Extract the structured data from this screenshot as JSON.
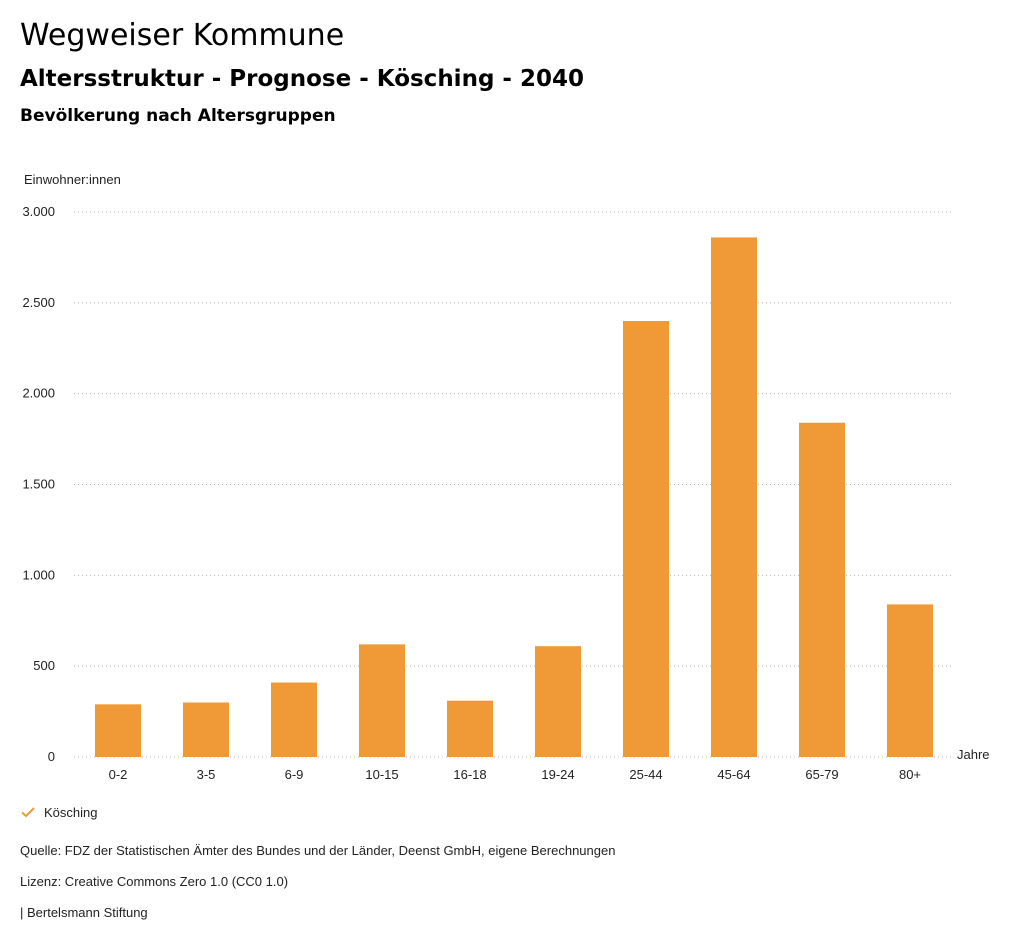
{
  "header": {
    "title": "Wegweiser Kommune",
    "subtitle": "Altersstruktur - Prognose - Kösching - 2040",
    "chart_heading": "Bevölkerung nach Altersgruppen"
  },
  "colors": {
    "bar": "#ef9a37",
    "grid": "#b5b5b5",
    "text": "#222222"
  },
  "chart_data": {
    "type": "bar",
    "title": "Bevölkerung nach Altersgruppen",
    "xlabel": "Jahre",
    "ylabel": "Einwohner:innen",
    "ylim": [
      0,
      3000
    ],
    "yticks": [
      0,
      500,
      1000,
      1500,
      2000,
      2500,
      3000
    ],
    "ytick_labels": [
      "0",
      "500",
      "1.000",
      "1.500",
      "2.000",
      "2.500",
      "3.000"
    ],
    "grid": true,
    "categories": [
      "0-2",
      "3-5",
      "6-9",
      "10-15",
      "16-18",
      "19-24",
      "25-44",
      "45-64",
      "65-79",
      "80+"
    ],
    "series": [
      {
        "name": "Kösching",
        "values": [
          290,
          300,
          410,
          620,
          310,
          610,
          2400,
          2860,
          1840,
          840
        ]
      }
    ]
  },
  "legend": {
    "items": [
      {
        "label": "Kösching",
        "icon": "check-icon"
      }
    ]
  },
  "footer": {
    "source": "Quelle: FDZ der Statistischen Ämter des Bundes und der Länder, Deenst GmbH, eigene Berechnungen",
    "license": "Lizenz: Creative Commons Zero 1.0 (CC0 1.0)",
    "credit": "| Bertelsmann Stiftung"
  }
}
